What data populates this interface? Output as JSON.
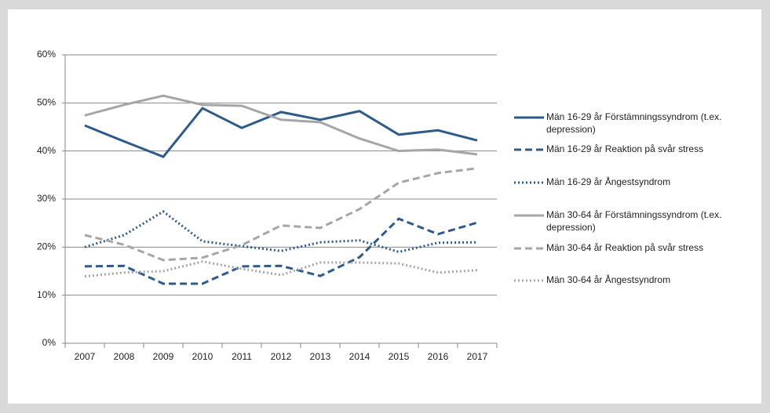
{
  "chart_data": {
    "type": "line",
    "categories": [
      "2007",
      "2008",
      "2009",
      "2010",
      "2011",
      "2012",
      "2013",
      "2014",
      "2015",
      "2016",
      "2017"
    ],
    "ylim": [
      0,
      60
    ],
    "yticks": [
      {
        "value": 0,
        "label": "0%"
      },
      {
        "value": 10,
        "label": "10%"
      },
      {
        "value": 20,
        "label": "20%"
      },
      {
        "value": 30,
        "label": "30%"
      },
      {
        "value": 40,
        "label": "40%"
      },
      {
        "value": 50,
        "label": "50%"
      },
      {
        "value": 60,
        "label": "60%"
      }
    ],
    "grid": true,
    "legend": "right",
    "series": [
      {
        "name": "Män 16-29 år Förstämningssyndrom (t.ex. depression)",
        "color": "#2e5b8a",
        "style": "solid",
        "values": [
          45.3,
          42,
          38.8,
          48.9,
          44.8,
          48.1,
          46.5,
          48.3,
          43.4,
          44.3,
          42.2
        ]
      },
      {
        "name": "Män 16-29 år Reaktion på svår stress",
        "color": "#2e5b8a",
        "style": "dashed",
        "values": [
          16,
          16.1,
          12.4,
          12.4,
          16,
          16.1,
          14,
          17.9,
          25.9,
          22.7,
          25.1
        ]
      },
      {
        "name": "Män 16-29 år Ångestsyndrom",
        "color": "#2e5b8a",
        "style": "dotted",
        "values": [
          20,
          22.5,
          27.4,
          21.2,
          20.2,
          19.2,
          21,
          21.4,
          19,
          20.9,
          21
        ]
      },
      {
        "name": "Män 30-64 år Förstämningssyndrom (t.ex. depression)",
        "color": "#a6a6a6",
        "style": "solid",
        "values": [
          47.4,
          49.6,
          51.5,
          49.6,
          49.4,
          46.5,
          46,
          42.6,
          40,
          40.3,
          39.3
        ]
      },
      {
        "name": "Män 30-64 år Reaktion på svår stress",
        "color": "#a6a6a6",
        "style": "dashed",
        "values": [
          22.5,
          20.5,
          17.3,
          17.8,
          20.4,
          24.5,
          24,
          27.9,
          33.4,
          35.4,
          36.4
        ]
      },
      {
        "name": "Män 30-64 år Ångestsyndrom",
        "color": "#a6a6a6",
        "style": "dotted",
        "values": [
          13.9,
          14.7,
          15,
          17,
          15.5,
          14.2,
          16.8,
          16.8,
          16.6,
          14.7,
          15.2
        ]
      }
    ]
  }
}
